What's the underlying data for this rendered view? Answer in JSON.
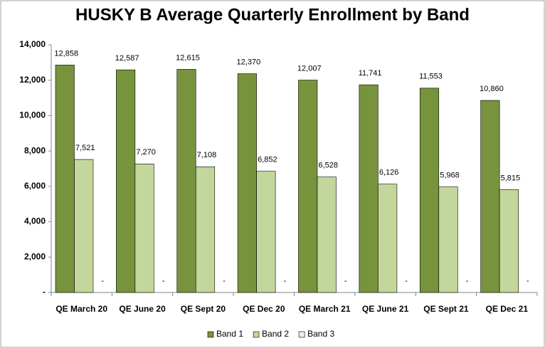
{
  "chart_data": {
    "type": "bar",
    "title": "HUSKY B Average Quarterly Enrollment by Band",
    "categories": [
      "QE March 20",
      "QE June 20",
      "QE Sept 20",
      "QE Dec 20",
      "QE March 21",
      "QE June 21",
      "QE Sept 21",
      "QE Dec 21"
    ],
    "series": [
      {
        "name": "Band 1",
        "color": "#77933c",
        "values": [
          12858,
          12587,
          12615,
          12370,
          12007,
          11741,
          11553,
          10860
        ],
        "value_labels": [
          "12,858",
          "12,587",
          "12,615",
          "12,370",
          "12,007",
          "11,741",
          "11,553",
          "10,860"
        ]
      },
      {
        "name": "Band 2",
        "color": "#c3d69b",
        "values": [
          7521,
          7270,
          7108,
          6852,
          6528,
          6126,
          5968,
          5815
        ],
        "value_labels": [
          "7,521",
          "7,270",
          "7,108",
          "6,852",
          "6,528",
          "6,126",
          "5,968",
          "5,815"
        ]
      },
      {
        "name": "Band 3",
        "color": "#ebf1de",
        "values": [
          0,
          0,
          0,
          0,
          0,
          0,
          0,
          0
        ],
        "value_labels": [
          "-",
          "-",
          "-",
          "-",
          "-",
          "-",
          "-",
          "-"
        ]
      }
    ],
    "ylim": [
      0,
      14000
    ],
    "yticks": [
      {
        "value": 0,
        "label": "-"
      },
      {
        "value": 2000,
        "label": "2,000"
      },
      {
        "value": 4000,
        "label": "4,000"
      },
      {
        "value": 6000,
        "label": "6,000"
      },
      {
        "value": 8000,
        "label": "8,000"
      },
      {
        "value": 10000,
        "label": "10,000"
      },
      {
        "value": 12000,
        "label": "12,000"
      },
      {
        "value": 14000,
        "label": "14,000"
      }
    ],
    "legend": "bottom"
  }
}
